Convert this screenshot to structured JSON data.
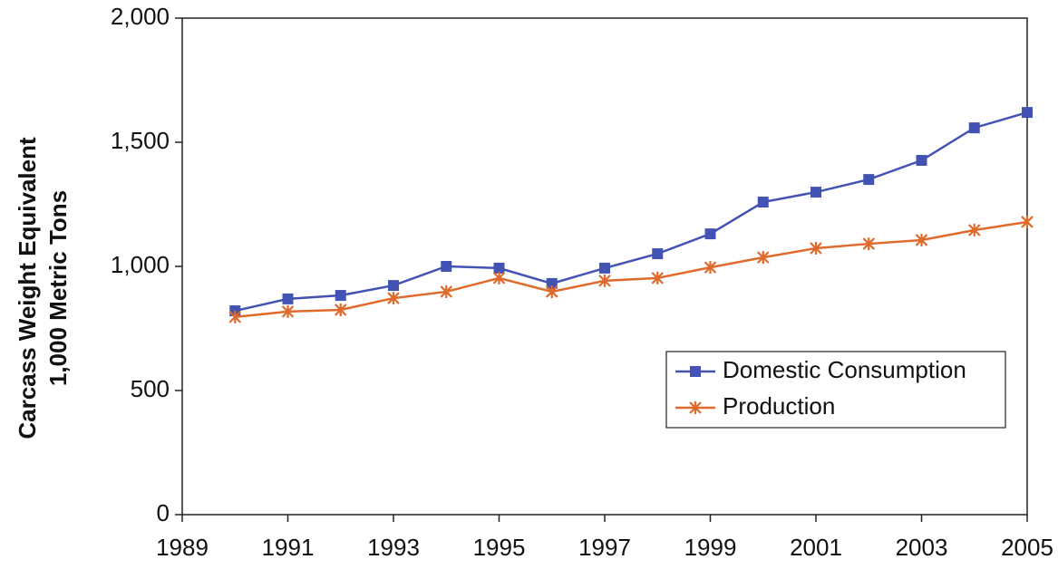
{
  "chart_data": {
    "type": "line",
    "ylabel": [
      "Carcass Weight Equivalent",
      "1,000 Metric Tons"
    ],
    "x": [
      1990,
      1991,
      1992,
      1993,
      1994,
      1995,
      1996,
      1997,
      1998,
      1999,
      2000,
      2001,
      2002,
      2003,
      2004,
      2005
    ],
    "series": [
      {
        "name": "Domestic Consumption",
        "color": "#4353b3",
        "marker": "square",
        "values": [
          821,
          869,
          883,
          923,
          1000,
          993,
          931,
          993,
          1051,
          1131,
          1259,
          1299,
          1350,
          1427,
          1558,
          1620
        ]
      },
      {
        "name": "Production",
        "color": "#e06a2c",
        "marker": "star",
        "values": [
          796,
          818,
          825,
          872,
          898,
          953,
          898,
          942,
          953,
          996,
          1036,
          1073,
          1091,
          1106,
          1146,
          1179
        ]
      }
    ],
    "xlim": [
      1989,
      2005
    ],
    "xticks": [
      1989,
      1991,
      1993,
      1995,
      1997,
      1999,
      2001,
      2003,
      2005
    ],
    "ylim": [
      0,
      2000
    ],
    "yticks": [
      0,
      500,
      {
        "value": 1000,
        "label": "1,000"
      },
      {
        "value": 1500,
        "label": "1,500"
      },
      {
        "value": 2000,
        "label": "2,000"
      }
    ],
    "grid": false,
    "legend": "lower right"
  }
}
